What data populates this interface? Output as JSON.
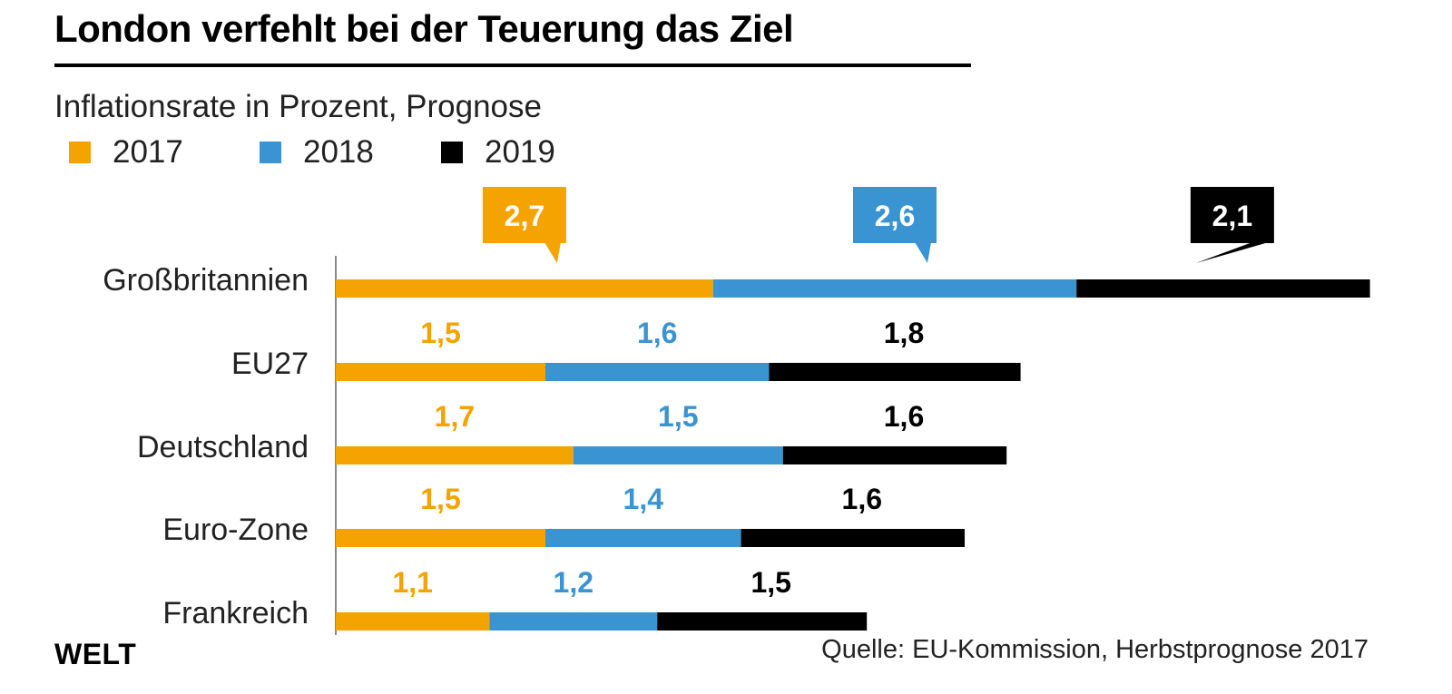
{
  "title": "London verfehlt bei der Teuerung das Ziel",
  "subtitle": "Inflationsrate in Prozent, Prognose",
  "brand": "WELT",
  "source": "Quelle: EU-Kommission, Herbstprognose 2017",
  "colors": {
    "2017": "#f5a300",
    "2018": "#3a94d2",
    "2019": "#000000"
  },
  "chart_data": {
    "type": "bar",
    "orientation": "horizontal",
    "stacked": true,
    "categories": [
      "Großbritannien",
      "EU27",
      "Deutschland",
      "Euro-Zone",
      "Frankreich"
    ],
    "series": [
      {
        "name": "2017",
        "values": [
          2.7,
          1.5,
          1.7,
          1.5,
          1.1
        ],
        "labels": [
          "2,7",
          "1,5",
          "1,7",
          "1,5",
          "1,1"
        ]
      },
      {
        "name": "2018",
        "values": [
          2.6,
          1.6,
          1.5,
          1.4,
          1.2
        ],
        "labels": [
          "2,6",
          "1,6",
          "1,5",
          "1,4",
          "1,2"
        ]
      },
      {
        "name": "2019",
        "values": [
          2.1,
          1.8,
          1.6,
          1.6,
          1.5
        ],
        "labels": [
          "2,1",
          "1,8",
          "1,6",
          "1,6",
          "1,5"
        ]
      }
    ],
    "title": "London verfehlt bei der Teuerung das Ziel",
    "subtitle": "Inflationsrate in Prozent, Prognose",
    "legend": "top-left",
    "grid": false,
    "xlim": [
      0,
      7.4
    ]
  }
}
